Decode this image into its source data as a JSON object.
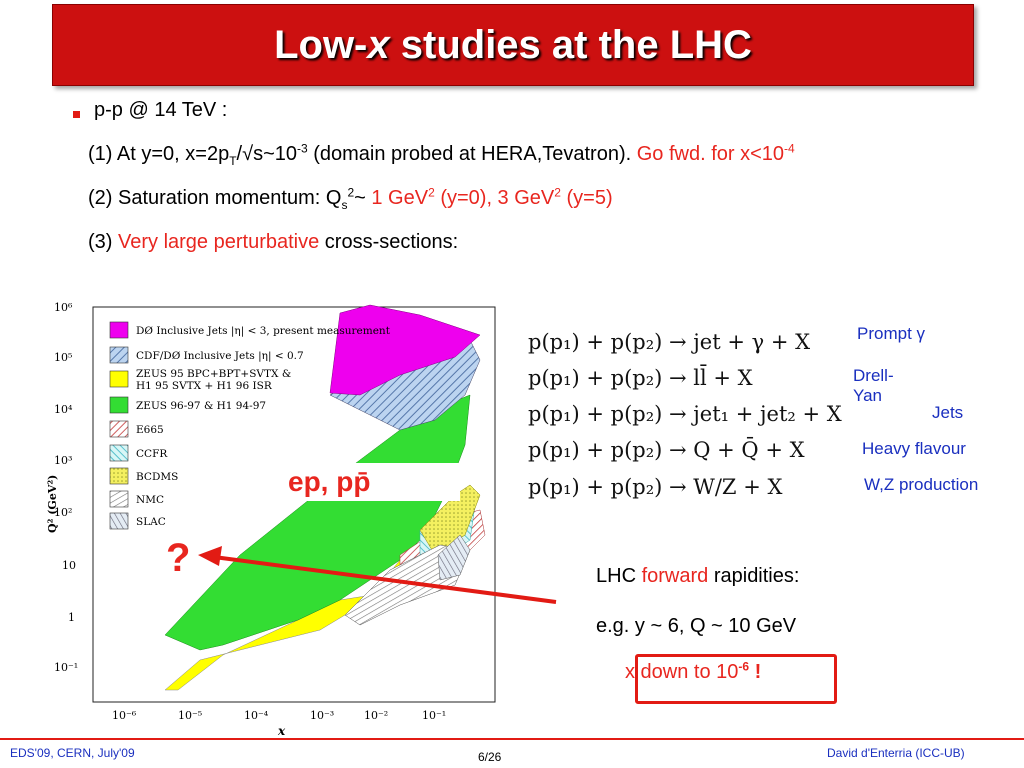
{
  "title": {
    "pre": "Low-",
    "var": "x",
    "post": " studies at the LHC"
  },
  "bullet": "p-p @ 14 TeV :",
  "line1": {
    "a": "(1) At y=0, x=2p",
    "sub_T": "T",
    "b": "/√s~10",
    "sup1": "-3",
    "c": " (domain probed at HERA,Tevatron). ",
    "red": "Go fwd. for x<10",
    "sup2": "-4"
  },
  "line2": {
    "a": "(2) Saturation momentum: Q",
    "sub_s": "s",
    "sup_2": "2",
    "b": "~ ",
    "r1": "1 GeV",
    "r1sup": "2",
    "r2": " (y=0), 3 GeV",
    "r2sup": "2",
    "r3": " (y=5)"
  },
  "line3": {
    "a": "(3) ",
    "red": "Very large perturbative",
    "b": " cross-sections:"
  },
  "equations": [
    "p(p₁) + p(p₂) → jet + γ +   X",
    "p(p₁) + p(p₂) → ll̄ +  X",
    "p(p₁) + p(p₂) → jet₁ + jet₂ +  X",
    "p(p₁) + p(p₂) → Q + Q̄ +  X",
    "p(p₁) + p(p₂) → W/Z +  X"
  ],
  "labels": [
    "Prompt γ",
    "Drell-Yan",
    "Jets",
    "Heavy flavour",
    "W,Z production"
  ],
  "plot": {
    "legend": [
      "DØ Inclusive Jets |η| < 3, present measurement",
      "CDF/DØ Inclusive Jets |η| < 0.7",
      "ZEUS 95 BPC+BPT+SVTX &",
      "H1 95 SVTX + H1 96 ISR",
      "ZEUS 96-97 & H1 94-97",
      "E665",
      "CCFR",
      "BCDMS",
      "NMC",
      "SLAC"
    ],
    "ylabel": "Q² (GeV²)",
    "xlabel": "x",
    "yticks": [
      "10⁶",
      "10⁵",
      "10⁴",
      "10³",
      "10²",
      "10",
      "1",
      "10⁻¹"
    ],
    "xticks": [
      "10⁻⁶",
      "10⁻⁵",
      "10⁻⁴",
      "10⁻³",
      "10⁻²",
      "10⁻¹"
    ],
    "overlay_label": "ep, pp̄",
    "question": "?"
  },
  "lhc": {
    "a": "LHC ",
    "red": "forward",
    "b": " rapidities:",
    "line2": "e.g. y ~ 6, Q ~ 10 GeV",
    "box": "x down to 10",
    "boxsup": "-6",
    "boxend": " !"
  },
  "footer": {
    "left": "EDS'09, CERN, July'09",
    "center": "6/26",
    "right": "David d'Enterria (ICC-UB)"
  }
}
